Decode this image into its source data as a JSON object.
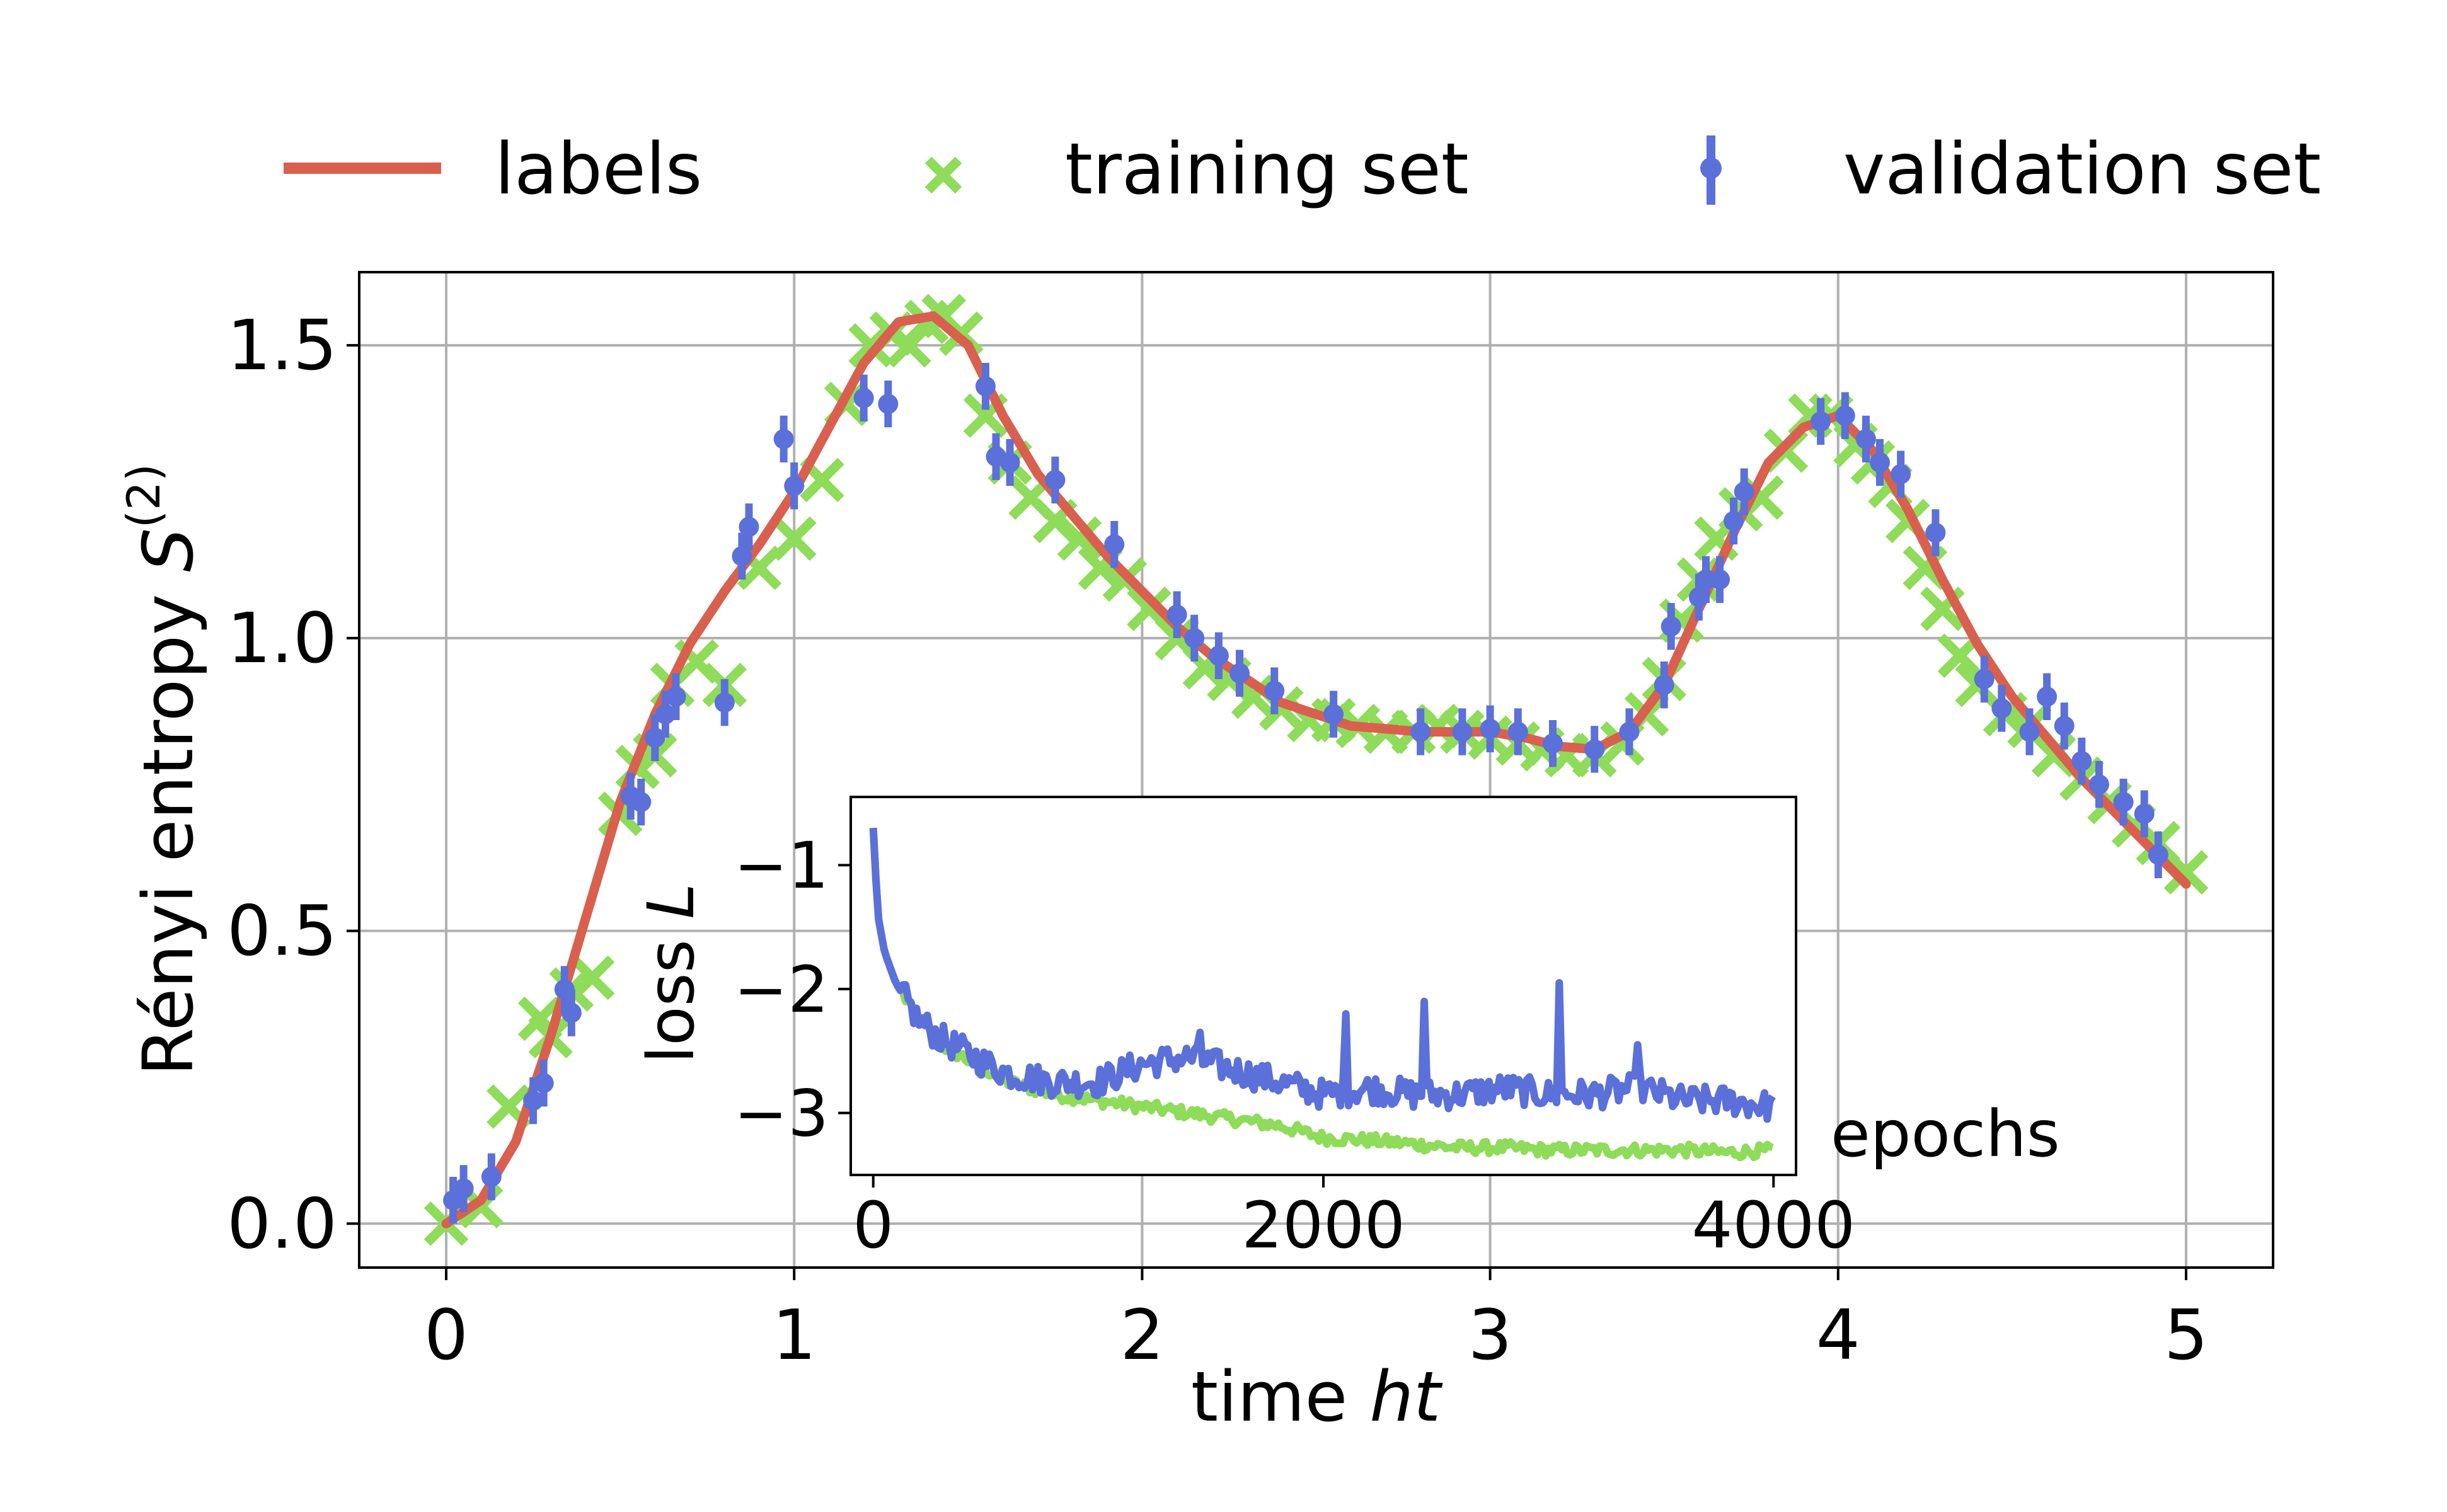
{
  "colors": {
    "labels": "#d9604f",
    "training": "#8edc5a",
    "validation": "#5b70d8"
  },
  "legend": {
    "labels": "labels",
    "training": "training set",
    "validation": "validation set"
  },
  "chart_data": [
    {
      "type": "line",
      "xlabel_prefix": "time ",
      "xlabel_italic": "ht",
      "ylabel_prefix": "Rényi entropy ",
      "ylabel_symbol": "S",
      "ylabel_superscript": "(2)",
      "xlim": [
        -0.25,
        5.25
      ],
      "ylim": [
        -0.075,
        1.625
      ],
      "xticks": [
        0,
        1,
        2,
        3,
        4,
        5
      ],
      "xtick_labels": [
        "0",
        "1",
        "2",
        "3",
        "4",
        "5"
      ],
      "yticks": [
        0.0,
        0.5,
        1.0,
        1.5
      ],
      "ytick_labels": [
        "0.0",
        "0.5",
        "1.0",
        "1.5"
      ],
      "grid": true,
      "legend_position": "top, above plot",
      "series": [
        {
          "name": "labels",
          "style": "line",
          "x": [
            0,
            0.1,
            0.2,
            0.3,
            0.4,
            0.5,
            0.6,
            0.7,
            0.8,
            0.9,
            1.0,
            1.1,
            1.2,
            1.3,
            1.4,
            1.5,
            1.6,
            1.7,
            1.8,
            1.9,
            2.0,
            2.1,
            2.2,
            2.3,
            2.4,
            2.5,
            2.6,
            2.7,
            2.8,
            2.9,
            3.0,
            3.1,
            3.2,
            3.3,
            3.4,
            3.5,
            3.6,
            3.7,
            3.8,
            3.9,
            4.0,
            4.1,
            4.2,
            4.3,
            4.4,
            4.5,
            4.6,
            4.7,
            4.8,
            4.9,
            5.0
          ],
          "y": [
            0.0,
            0.04,
            0.14,
            0.32,
            0.52,
            0.72,
            0.87,
            0.99,
            1.08,
            1.16,
            1.25,
            1.36,
            1.47,
            1.54,
            1.55,
            1.5,
            1.38,
            1.28,
            1.21,
            1.14,
            1.08,
            1.02,
            0.97,
            0.93,
            0.89,
            0.87,
            0.85,
            0.845,
            0.84,
            0.84,
            0.84,
            0.83,
            0.815,
            0.81,
            0.84,
            0.92,
            1.05,
            1.18,
            1.3,
            1.36,
            1.38,
            1.32,
            1.22,
            1.1,
            0.99,
            0.9,
            0.83,
            0.76,
            0.7,
            0.64,
            0.58
          ]
        },
        {
          "name": "training set",
          "style": "x-markers",
          "x": [
            0.0,
            0.1,
            0.18,
            0.27,
            0.3,
            0.36,
            0.42,
            0.5,
            0.55,
            0.6,
            0.65,
            0.72,
            0.8,
            0.9,
            1.0,
            1.08,
            1.15,
            1.22,
            1.28,
            1.33,
            1.38,
            1.43,
            1.48,
            1.55,
            1.62,
            1.68,
            1.75,
            1.82,
            1.88,
            1.95,
            2.02,
            2.1,
            2.18,
            2.25,
            2.32,
            2.4,
            2.48,
            2.55,
            2.62,
            2.7,
            2.78,
            2.85,
            2.92,
            3.0,
            3.08,
            3.15,
            3.22,
            3.3,
            3.38,
            3.45,
            3.5,
            3.55,
            3.6,
            3.65,
            3.72,
            3.78,
            3.85,
            3.92,
            3.98,
            4.05,
            4.1,
            4.15,
            4.2,
            4.25,
            4.3,
            4.35,
            4.4,
            4.48,
            4.55,
            4.62,
            4.7,
            4.78,
            4.85,
            4.92,
            5.0
          ],
          "y": [
            0.0,
            0.03,
            0.2,
            0.35,
            0.32,
            0.4,
            0.42,
            0.7,
            0.78,
            0.8,
            0.92,
            0.96,
            0.92,
            1.12,
            1.17,
            1.27,
            1.4,
            1.5,
            1.52,
            1.5,
            1.54,
            1.55,
            1.52,
            1.38,
            1.3,
            1.24,
            1.2,
            1.17,
            1.12,
            1.1,
            1.05,
            1.0,
            0.95,
            0.93,
            0.9,
            0.88,
            0.86,
            0.86,
            0.85,
            0.84,
            0.84,
            0.85,
            0.84,
            0.83,
            0.82,
            0.81,
            0.8,
            0.8,
            0.82,
            0.87,
            0.93,
            1.03,
            1.1,
            1.17,
            1.22,
            1.24,
            1.32,
            1.38,
            1.38,
            1.33,
            1.3,
            1.26,
            1.2,
            1.12,
            1.05,
            0.97,
            0.92,
            0.87,
            0.85,
            0.8,
            0.76,
            0.72,
            0.68,
            0.65,
            0.6
          ]
        },
        {
          "name": "validation set",
          "style": "errorbar-markers",
          "x": [
            0.02,
            0.05,
            0.13,
            0.25,
            0.28,
            0.34,
            0.36,
            0.53,
            0.56,
            0.6,
            0.63,
            0.66,
            0.8,
            0.85,
            0.87,
            0.97,
            1.0,
            1.2,
            1.27,
            1.55,
            1.58,
            1.62,
            1.75,
            1.92,
            2.1,
            2.15,
            2.22,
            2.28,
            2.38,
            2.55,
            2.8,
            2.92,
            3.0,
            3.08,
            3.18,
            3.3,
            3.4,
            3.5,
            3.52,
            3.6,
            3.62,
            3.66,
            3.7,
            3.73,
            3.95,
            4.02,
            4.08,
            4.12,
            4.18,
            4.28,
            4.42,
            4.47,
            4.55,
            4.6,
            4.65,
            4.7,
            4.75,
            4.82,
            4.88,
            4.92
          ],
          "y": [
            0.04,
            0.06,
            0.08,
            0.21,
            0.24,
            0.4,
            0.36,
            0.73,
            0.72,
            0.83,
            0.87,
            0.9,
            0.89,
            1.14,
            1.19,
            1.34,
            1.26,
            1.41,
            1.4,
            1.43,
            1.31,
            1.3,
            1.27,
            1.16,
            1.04,
            1.0,
            0.97,
            0.94,
            0.91,
            0.87,
            0.84,
            0.84,
            0.845,
            0.84,
            0.82,
            0.81,
            0.84,
            0.92,
            1.02,
            1.07,
            1.1,
            1.1,
            1.2,
            1.25,
            1.37,
            1.38,
            1.34,
            1.3,
            1.28,
            1.18,
            0.93,
            0.88,
            0.84,
            0.9,
            0.85,
            0.79,
            0.75,
            0.72,
            0.7,
            0.63
          ],
          "yerr": 0.04
        }
      ]
    },
    {
      "type": "line",
      "position": "inset",
      "xlabel": "epochs",
      "ylabel_prefix": "loss ",
      "ylabel_italic": "L",
      "xlim": [
        -100,
        4100
      ],
      "ylim": [
        -3.5,
        -0.45
      ],
      "xticks": [
        0,
        2000,
        4000
      ],
      "xtick_labels": [
        "0",
        "2000",
        "4000"
      ],
      "yticks": [
        -1,
        -2,
        -3
      ],
      "ytick_labels": [
        "−1",
        "−2",
        "−3"
      ],
      "grid": false,
      "series": [
        {
          "name": "training set",
          "x": [
            0,
            20,
            50,
            100,
            150,
            200,
            300,
            400,
            500,
            600,
            800,
            1000,
            1200,
            1400,
            1600,
            1800,
            2000,
            2200,
            2400,
            2600,
            2800,
            3000,
            3200,
            3400,
            3600,
            3800,
            4000
          ],
          "y": [
            -0.7,
            -1.4,
            -1.7,
            -1.95,
            -2.1,
            -2.25,
            -2.45,
            -2.55,
            -2.65,
            -2.75,
            -2.85,
            -2.9,
            -2.95,
            -3.0,
            -3.05,
            -3.1,
            -3.2,
            -3.22,
            -3.25,
            -3.28,
            -3.28,
            -3.3,
            -3.3,
            -3.3,
            -3.3,
            -3.32,
            -3.3
          ],
          "noise": 0.05
        },
        {
          "name": "validation set",
          "x": [
            0,
            20,
            50,
            100,
            150,
            200,
            300,
            400,
            500,
            600,
            800,
            1000,
            1200,
            1400,
            1600,
            1800,
            2000,
            2200,
            2400,
            2600,
            2800,
            3000,
            3200,
            3400,
            3600,
            3800,
            4000
          ],
          "y": [
            -0.7,
            -1.4,
            -1.7,
            -1.95,
            -2.1,
            -2.25,
            -2.4,
            -2.5,
            -2.6,
            -2.68,
            -2.75,
            -2.75,
            -2.6,
            -2.55,
            -2.65,
            -2.75,
            -2.85,
            -2.8,
            -2.85,
            -2.85,
            -2.8,
            -2.85,
            -2.85,
            -2.8,
            -2.9,
            -2.9,
            -2.95
          ],
          "noise": 0.12,
          "spikes": [
            {
              "x": 1450,
              "y": -2.35
            },
            {
              "x": 2100,
              "y": -2.2
            },
            {
              "x": 2450,
              "y": -2.1
            },
            {
              "x": 3050,
              "y": -1.95
            },
            {
              "x": 3400,
              "y": -2.45
            }
          ]
        }
      ]
    }
  ]
}
